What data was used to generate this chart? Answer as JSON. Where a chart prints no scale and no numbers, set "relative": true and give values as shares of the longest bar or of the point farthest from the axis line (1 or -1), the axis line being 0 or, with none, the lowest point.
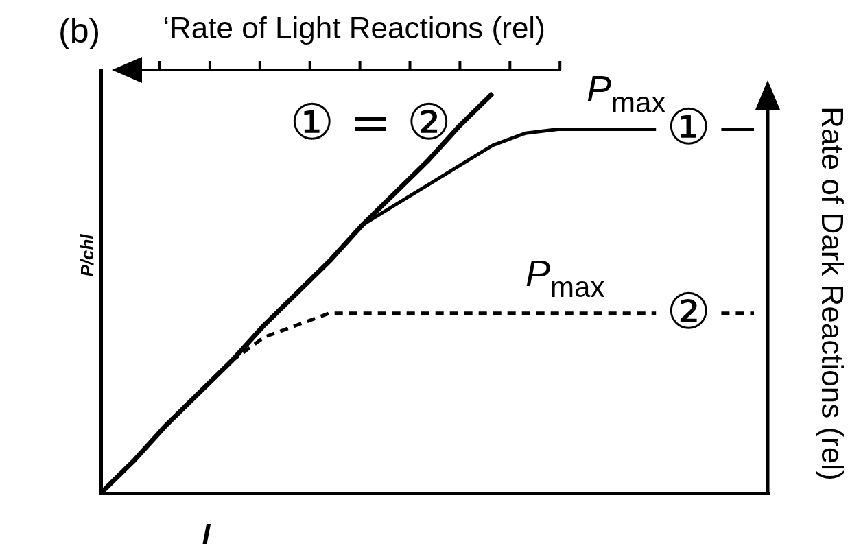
{
  "chart_data": {
    "type": "line",
    "title": "(b)",
    "xlabel": "I",
    "ylabel": "P/chl",
    "x2label": "‘Rate of Light Reactions (rel)",
    "y2label": "Rate of Dark Reactions (rel)",
    "relative": true,
    "categories": [
      null,
      null,
      null,
      null,
      null,
      null,
      null,
      null,
      null,
      null,
      null,
      null,
      null,
      null,
      null,
      null,
      null,
      null,
      null,
      null,
      null
    ],
    "series": [
      {
        "color": "#000000",
        "values": [
          0,
          0.08,
          0.17,
          0.25,
          0.33,
          0.42,
          0.5,
          0.58,
          0.67,
          0.75,
          0.83,
          0.92,
          1,
          null,
          null,
          null,
          null,
          null,
          null,
          null,
          null
        ]
      },
      {
        "name": "①",
        "color": "#000000",
        "values": [
          null,
          null,
          null,
          null,
          null,
          null,
          null,
          null,
          0.67,
          0.72,
          0.77,
          0.82,
          0.87,
          0.9,
          0.91,
          0.91,
          0.91,
          0.91,
          null,
          0.91,
          0.91
        ]
      },
      {
        "name": "②",
        "color": "#000000",
        "line_style": "dashed",
        "values": [
          null,
          null,
          null,
          null,
          0.33,
          0.39,
          0.42,
          0.45,
          0.45,
          0.45,
          0.45,
          0.45,
          0.45,
          0.45,
          0.45,
          0.45,
          0.45,
          0.45,
          null,
          0.45,
          0.45
        ]
      }
    ],
    "annotations": [
      "① = ②",
      {
        "text": "P$_{max}$",
        "y": 0.91
      },
      {
        "text": "P$_{max}$",
        "y": 0.45
      }
    ],
    "grid": false,
    "marker": "none"
  }
}
